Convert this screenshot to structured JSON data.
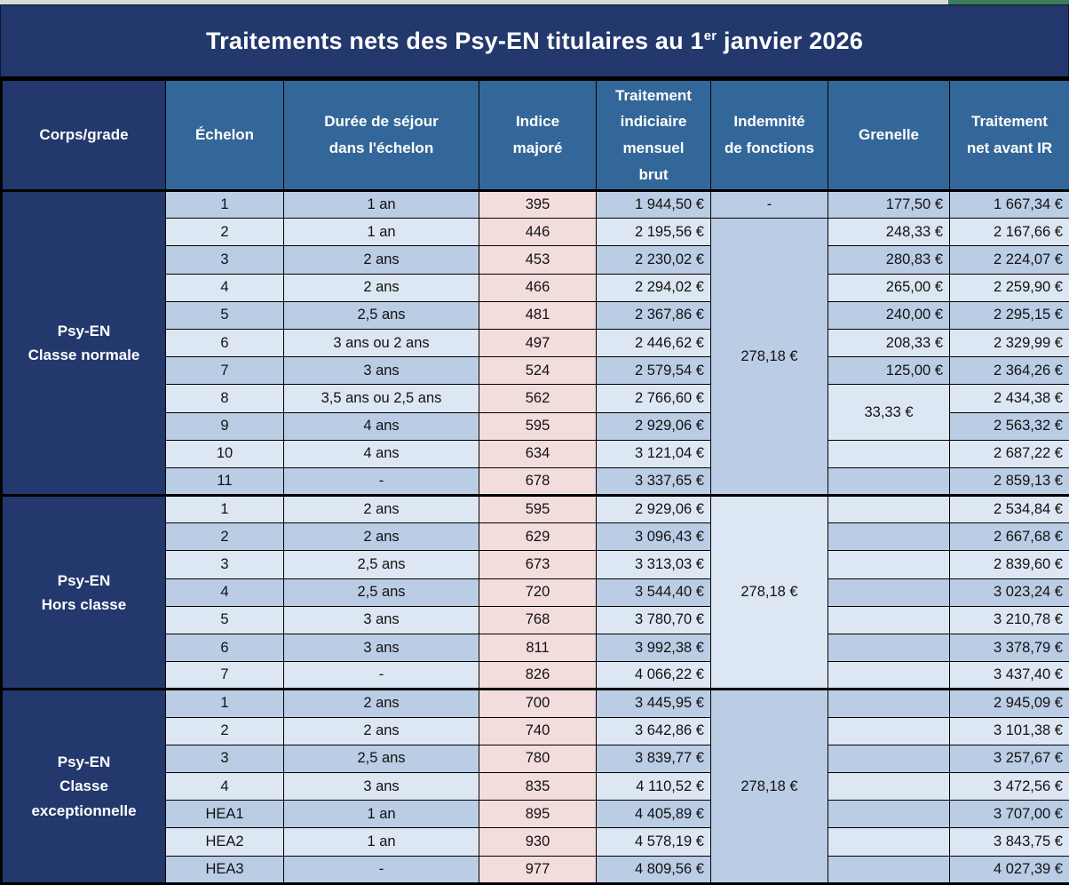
{
  "title": {
    "part1": "Traitements nets des Psy-EN titulaires au 1",
    "sup": "er",
    "part2": " janvier 2026"
  },
  "columns": [
    {
      "id": "corps",
      "lines": [
        "Corps/grade"
      ]
    },
    {
      "id": "echelon",
      "lines": [
        "Échelon"
      ]
    },
    {
      "id": "duree",
      "lines": [
        "Durée de séjour",
        "dans l'échelon"
      ]
    },
    {
      "id": "indice",
      "lines": [
        "Indice",
        "majoré"
      ]
    },
    {
      "id": "brut",
      "lines": [
        "Traitement",
        "indiciaire",
        "mensuel",
        "brut"
      ]
    },
    {
      "id": "indemnite",
      "lines": [
        "Indemnité",
        "de fonctions"
      ]
    },
    {
      "id": "grenelle",
      "lines": [
        "Grenelle"
      ]
    },
    {
      "id": "net",
      "lines": [
        "Traitement",
        "net avant IR"
      ]
    }
  ],
  "sections": [
    {
      "label_lines": [
        "Psy-EN",
        "Classe normale"
      ],
      "indemnite": {
        "first_row_value": "-",
        "merged": {
          "value": "278,18 €",
          "from_row": 2,
          "span": 10,
          "shade": "dark"
        }
      },
      "grenelle_merged": {
        "value": "33,33 €",
        "from_row": 8,
        "span": 2,
        "shade": "light"
      },
      "rows": [
        {
          "echelon": "1",
          "duree": "1 an",
          "indice": "395",
          "brut": "1 944,50 €",
          "grenelle": "177,50 €",
          "net": "1 667,34 €"
        },
        {
          "echelon": "2",
          "duree": "1 an",
          "indice": "446",
          "brut": "2 195,56 €",
          "grenelle": "248,33 €",
          "net": "2 167,66 €"
        },
        {
          "echelon": "3",
          "duree": "2 ans",
          "indice": "453",
          "brut": "2 230,02 €",
          "grenelle": "280,83 €",
          "net": "2 224,07 €"
        },
        {
          "echelon": "4",
          "duree": "2 ans",
          "indice": "466",
          "brut": "2 294,02 €",
          "grenelle": "265,00 €",
          "net": "2 259,90 €"
        },
        {
          "echelon": "5",
          "duree": "2,5 ans",
          "indice": "481",
          "brut": "2 367,86 €",
          "grenelle": "240,00 €",
          "net": "2 295,15 €"
        },
        {
          "echelon": "6",
          "duree": "3 ans ou 2 ans",
          "indice": "497",
          "brut": "2 446,62 €",
          "grenelle": "208,33 €",
          "net": "2 329,99 €"
        },
        {
          "echelon": "7",
          "duree": "3 ans",
          "indice": "524",
          "brut": "2 579,54 €",
          "grenelle": "125,00 €",
          "net": "2 364,26 €"
        },
        {
          "echelon": "8",
          "duree": "3,5 ans ou 2,5 ans",
          "indice": "562",
          "brut": "2 766,60 €",
          "grenelle": null,
          "net": "2 434,38 €"
        },
        {
          "echelon": "9",
          "duree": "4 ans",
          "indice": "595",
          "brut": "2 929,06 €",
          "grenelle": null,
          "net": "2 563,32 €"
        },
        {
          "echelon": "10",
          "duree": "4 ans",
          "indice": "634",
          "brut": "3 121,04 €",
          "grenelle": "",
          "net": "2 687,22 €"
        },
        {
          "echelon": "11",
          "duree": "-",
          "indice": "678",
          "brut": "3 337,65 €",
          "grenelle": "",
          "net": "2 859,13 €"
        }
      ]
    },
    {
      "label_lines": [
        "Psy-EN",
        "Hors classe"
      ],
      "indemnite": {
        "first_row_value": null,
        "merged": {
          "value": "278,18 €",
          "from_row": 1,
          "span": 7,
          "shade": "light"
        }
      },
      "grenelle_merged": null,
      "rows": [
        {
          "echelon": "1",
          "duree": "2 ans",
          "indice": "595",
          "brut": "2 929,06 €",
          "grenelle": "",
          "net": "2 534,84 €"
        },
        {
          "echelon": "2",
          "duree": "2 ans",
          "indice": "629",
          "brut": "3 096,43 €",
          "grenelle": "",
          "net": "2 667,68 €"
        },
        {
          "echelon": "3",
          "duree": "2,5 ans",
          "indice": "673",
          "brut": "3 313,03 €",
          "grenelle": "",
          "net": "2 839,60 €"
        },
        {
          "echelon": "4",
          "duree": "2,5 ans",
          "indice": "720",
          "brut": "3 544,40 €",
          "grenelle": "",
          "net": "3 023,24 €"
        },
        {
          "echelon": "5",
          "duree": "3 ans",
          "indice": "768",
          "brut": "3 780,70 €",
          "grenelle": "",
          "net": "3 210,78 €"
        },
        {
          "echelon": "6",
          "duree": "3 ans",
          "indice": "811",
          "brut": "3 992,38 €",
          "grenelle": "",
          "net": "3 378,79 €"
        },
        {
          "echelon": "7",
          "duree": "-",
          "indice": "826",
          "brut": "4 066,22 €",
          "grenelle": "",
          "net": "3 437,40 €"
        }
      ]
    },
    {
      "label_lines": [
        "Psy-EN",
        "Classe",
        "exceptionnelle"
      ],
      "indemnite": {
        "first_row_value": null,
        "merged": {
          "value": "278,18 €",
          "from_row": 1,
          "span": 7,
          "shade": "dark"
        }
      },
      "grenelle_merged": null,
      "rows": [
        {
          "echelon": "1",
          "duree": "2 ans",
          "indice": "700",
          "brut": "3 445,95 €",
          "grenelle": "",
          "net": "2 945,09 €"
        },
        {
          "echelon": "2",
          "duree": "2 ans",
          "indice": "740",
          "brut": "3 642,86 €",
          "grenelle": "",
          "net": "3 101,38 €"
        },
        {
          "echelon": "3",
          "duree": "2,5 ans",
          "indice": "780",
          "brut": "3 839,77 €",
          "grenelle": "",
          "net": "3 257,67 €"
        },
        {
          "echelon": "4",
          "duree": "3 ans",
          "indice": "835",
          "brut": "4 110,52 €",
          "grenelle": "",
          "net": "3 472,56 €"
        },
        {
          "echelon": "HEA1",
          "duree": "1 an",
          "indice": "895",
          "brut": "4 405,89 €",
          "grenelle": "",
          "net": "3 707,00 €"
        },
        {
          "echelon": "HEA2",
          "duree": "1 an",
          "indice": "930",
          "brut": "4 578,19 €",
          "grenelle": "",
          "net": "3 843,75 €"
        },
        {
          "echelon": "HEA3",
          "duree": "-",
          "indice": "977",
          "brut": "4 809,56 €",
          "grenelle": "",
          "net": "4 027,39 €"
        }
      ]
    }
  ],
  "colors": {
    "navy": "#23386c",
    "header_blue": "#346799",
    "stripe_dark": "#bbcde5",
    "stripe_light": "#dde7f3",
    "indice_pink": "#f3dddc",
    "strip_gray": "#d7dbd8",
    "strip_green": "#3e7d5b",
    "border": "#000000"
  }
}
